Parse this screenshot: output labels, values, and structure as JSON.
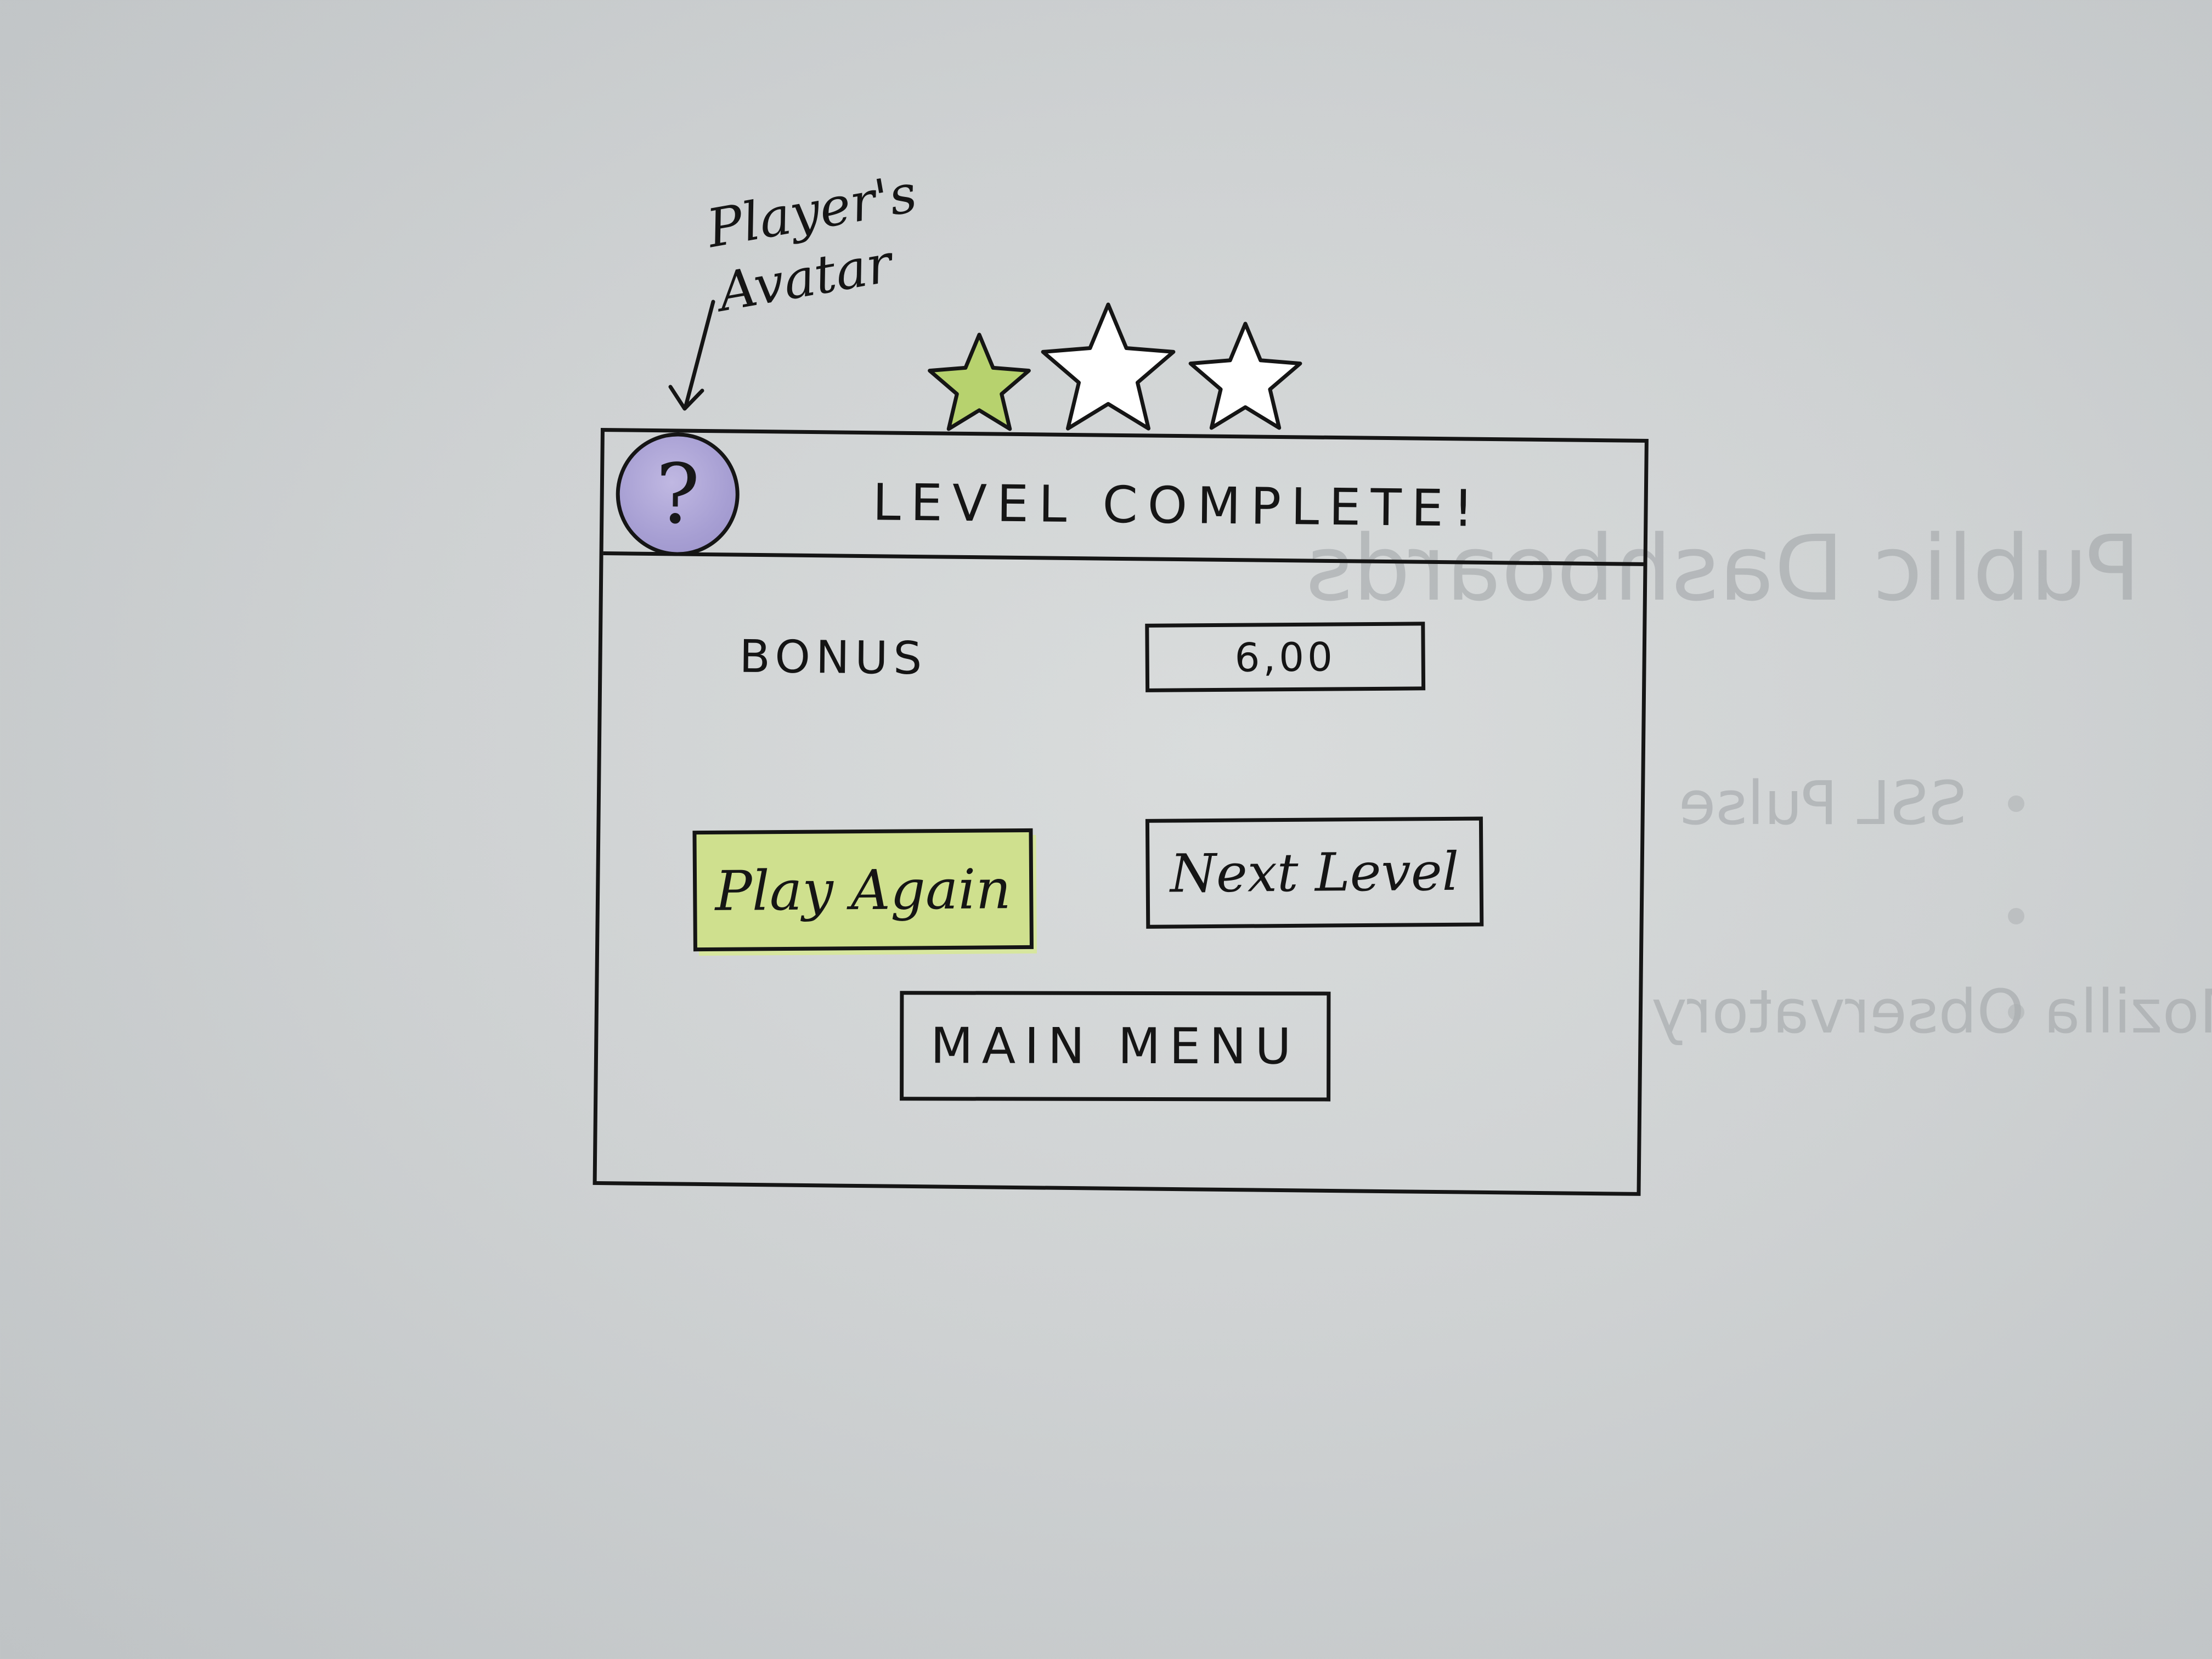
{
  "annotation": {
    "line1": "Player's",
    "line2": "Avatar"
  },
  "stars": {
    "earned": 1,
    "total": 3,
    "filled_color": "#b7d26e",
    "empty_color": "#ffffff"
  },
  "dialog": {
    "title": "LEVEL COMPLETE!",
    "avatar_glyph": "?",
    "avatar_color": "#a79fd3",
    "bonus_label": "BONUS",
    "bonus_value": "6,00",
    "buttons": {
      "play_again": "Play Again",
      "next_level": "Next Level",
      "main_menu": "MAIN MENU"
    },
    "highlight_color": "#cfe08e"
  },
  "background_bleed": {
    "title": "Public Dashboards",
    "items": [
      "SSL Pulse",
      "Mozilla Observatory"
    ]
  }
}
